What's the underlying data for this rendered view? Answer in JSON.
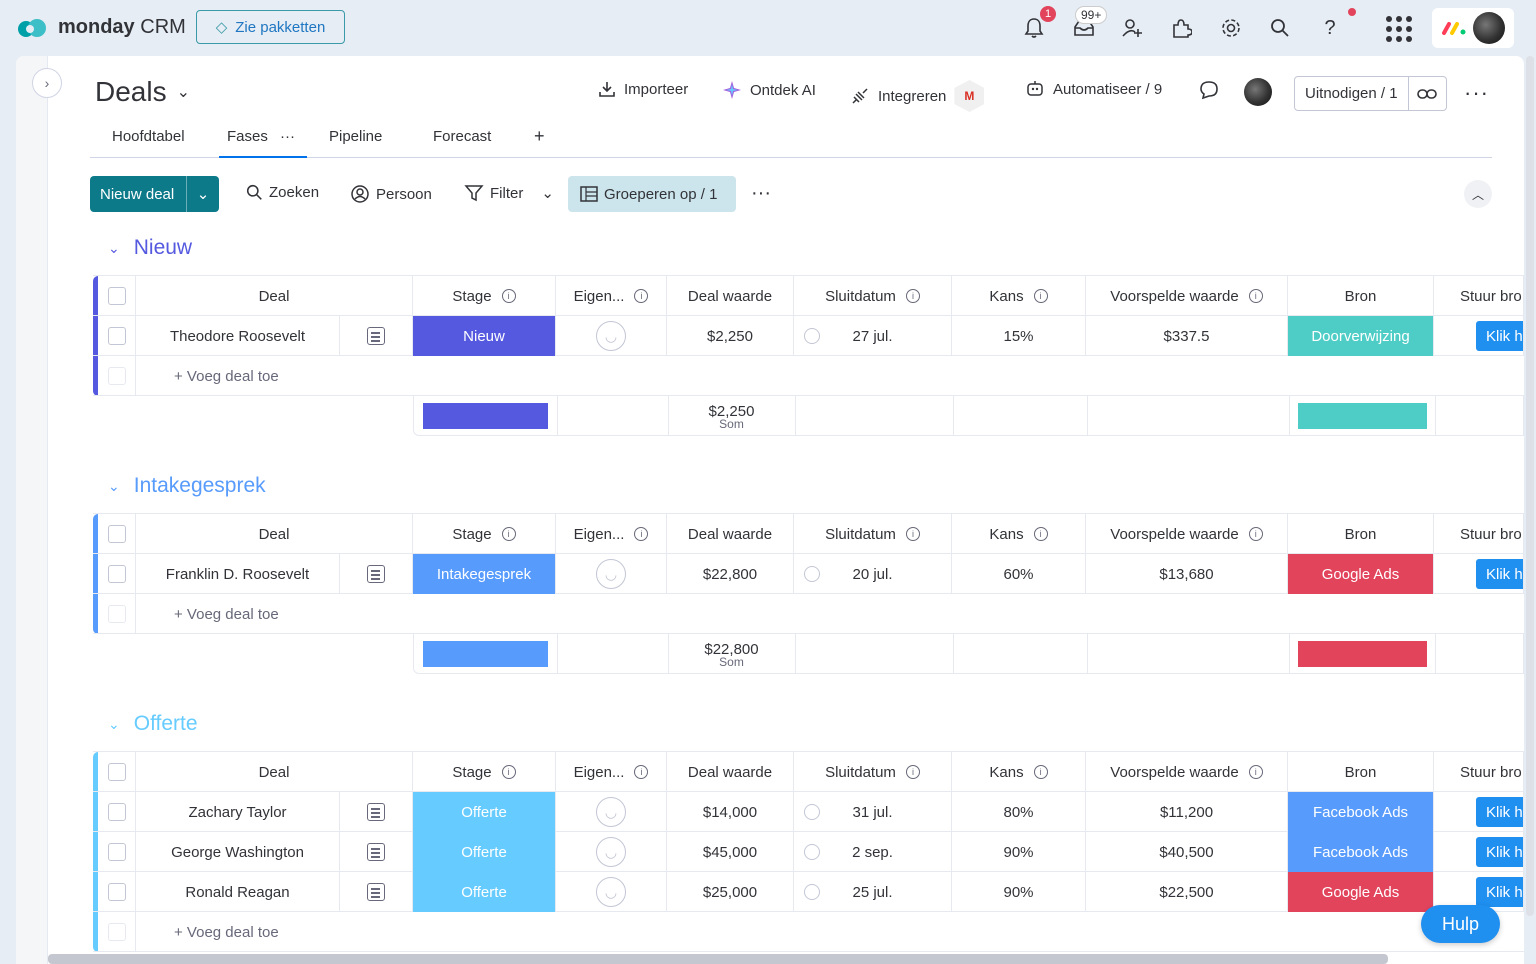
{
  "app": {
    "brand": "monday",
    "product": "CRM",
    "packages_label": "Zie pakketten",
    "notif_count": "1",
    "inbox_count": "99+"
  },
  "board": {
    "title": "Deals",
    "actions": {
      "import": "Importeer",
      "ai": "Ontdek AI",
      "integrate": "Integreren",
      "automate": "Automatiseer / 9",
      "invite": "Uitnodigen / 1"
    },
    "tabs": [
      "Hoofdtabel",
      "Fases",
      "Pipeline",
      "Forecast",
      "+"
    ]
  },
  "toolbar": {
    "new_deal": "Nieuw deal",
    "search": "Zoeken",
    "person": "Persoon",
    "filter": "Filter",
    "group_by": "Groeperen op / 1"
  },
  "columns": {
    "deal": "Deal",
    "stage": "Stage",
    "owner": "Eigen...",
    "value": "Deal waarde",
    "close": "Sluitdatum",
    "chance": "Kans",
    "forecast": "Voorspelde waarde",
    "source": "Bron",
    "send": "Stuur bro"
  },
  "add_deal": "+ Voeg deal toe",
  "sum_label": "Som",
  "klik_label": "Klik hi",
  "help": "Hulp",
  "colors": {
    "nieuw": "#5559df",
    "intake": "#579bfc",
    "offerte": "#66ccff",
    "referral": "#4eccc6",
    "google": "#e2445c",
    "facebook": "#579bfc",
    "accent": "#0073ea"
  },
  "groups": [
    {
      "name": "Nieuw",
      "color": "#5559df",
      "deals": [
        {
          "name": "Theodore Roosevelt",
          "stage": "Nieuw",
          "value": "$2,250",
          "close": "27 jul.",
          "chance": "15%",
          "forecast": "$337.5",
          "source": "Doorverwijzing"
        }
      ],
      "sum": "$2,250"
    },
    {
      "name": "Intakegesprek",
      "color": "#579bfc",
      "deals": [
        {
          "name": "Franklin D. Roosevelt",
          "stage": "Intakegesprek",
          "value": "$22,800",
          "close": "20 jul.",
          "chance": "60%",
          "forecast": "$13,680",
          "source": "Google Ads"
        }
      ],
      "sum": "$22,800"
    },
    {
      "name": "Offerte",
      "color": "#66ccff",
      "deals": [
        {
          "name": "Zachary Taylor",
          "stage": "Offerte",
          "value": "$14,000",
          "close": "31 jul.",
          "chance": "80%",
          "forecast": "$11,200",
          "source": "Facebook Ads"
        },
        {
          "name": "George Washington",
          "stage": "Offerte",
          "value": "$45,000",
          "close": "2 sep.",
          "chance": "90%",
          "forecast": "$40,500",
          "source": "Facebook Ads"
        },
        {
          "name": "Ronald Reagan",
          "stage": "Offerte",
          "value": "$25,000",
          "close": "25 jul.",
          "chance": "90%",
          "forecast": "$22,500",
          "source": "Google Ads"
        }
      ]
    }
  ]
}
